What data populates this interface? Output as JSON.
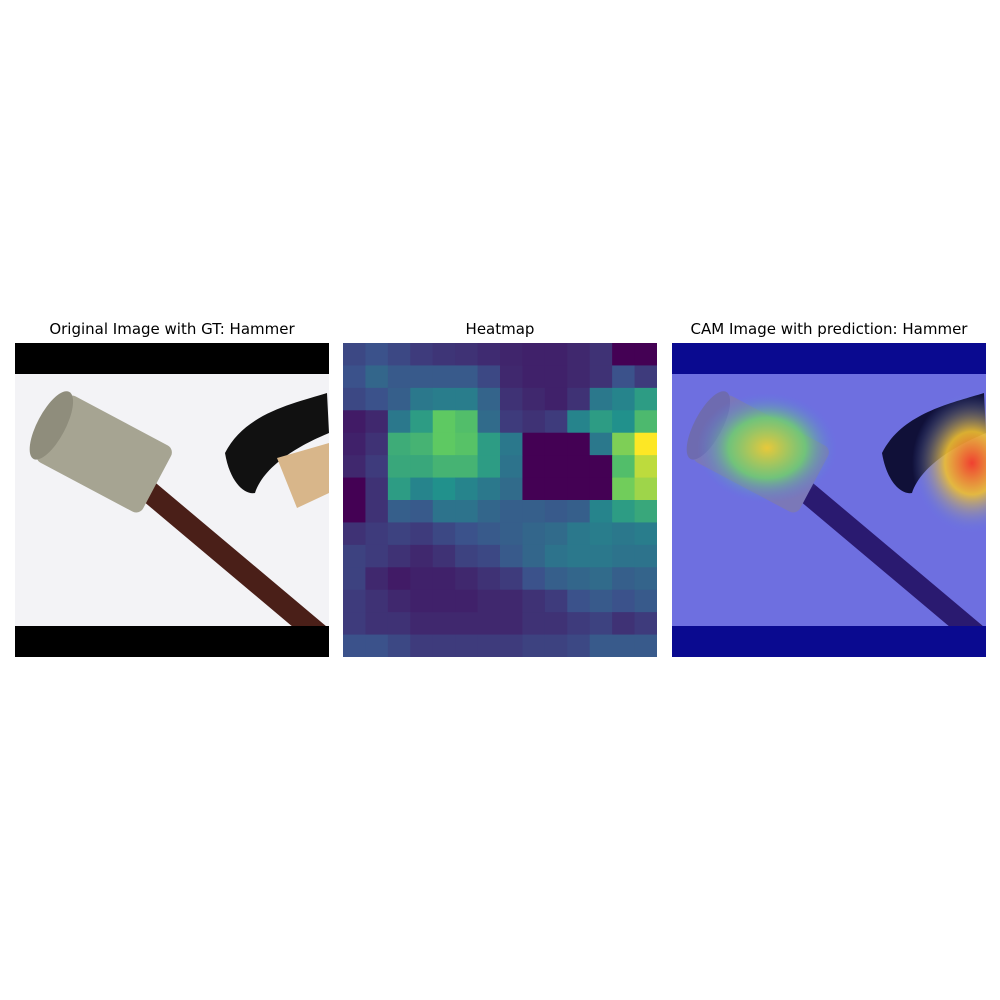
{
  "panels": {
    "original_title": "Original Image with GT: Hammer",
    "heatmap_title": "Heatmap",
    "cam_title": "CAM Image with prediction: Hammer"
  },
  "chart_data": {
    "type": "heatmap",
    "title": "Heatmap",
    "colormap": "viridis",
    "rows": 14,
    "cols": 14,
    "values": [
      [
        0.22,
        0.25,
        0.22,
        0.18,
        0.16,
        0.15,
        0.13,
        0.11,
        0.1,
        0.1,
        0.12,
        0.15,
        0.0,
        0.0
      ],
      [
        0.25,
        0.33,
        0.28,
        0.28,
        0.28,
        0.28,
        0.22,
        0.12,
        0.1,
        0.1,
        0.12,
        0.15,
        0.25,
        0.18
      ],
      [
        0.22,
        0.25,
        0.3,
        0.4,
        0.42,
        0.42,
        0.32,
        0.15,
        0.12,
        0.1,
        0.15,
        0.4,
        0.45,
        0.55
      ],
      [
        0.08,
        0.12,
        0.4,
        0.55,
        0.75,
        0.7,
        0.35,
        0.18,
        0.15,
        0.18,
        0.45,
        0.55,
        0.5,
        0.68
      ],
      [
        0.1,
        0.15,
        0.62,
        0.65,
        0.75,
        0.72,
        0.55,
        0.4,
        0.0,
        0.0,
        0.0,
        0.4,
        0.8,
        1.0
      ],
      [
        0.12,
        0.18,
        0.6,
        0.6,
        0.65,
        0.65,
        0.55,
        0.38,
        0.0,
        0.0,
        0.0,
        0.0,
        0.7,
        0.9
      ],
      [
        0.0,
        0.15,
        0.55,
        0.45,
        0.5,
        0.45,
        0.4,
        0.35,
        0.0,
        0.0,
        0.0,
        0.0,
        0.78,
        0.85
      ],
      [
        0.0,
        0.15,
        0.3,
        0.28,
        0.38,
        0.38,
        0.33,
        0.3,
        0.3,
        0.28,
        0.3,
        0.45,
        0.55,
        0.6
      ],
      [
        0.15,
        0.18,
        0.2,
        0.18,
        0.22,
        0.25,
        0.28,
        0.3,
        0.33,
        0.35,
        0.4,
        0.42,
        0.4,
        0.42
      ],
      [
        0.2,
        0.18,
        0.15,
        0.12,
        0.15,
        0.2,
        0.22,
        0.28,
        0.33,
        0.38,
        0.4,
        0.4,
        0.38,
        0.38
      ],
      [
        0.2,
        0.12,
        0.08,
        0.1,
        0.1,
        0.12,
        0.15,
        0.18,
        0.25,
        0.3,
        0.33,
        0.35,
        0.3,
        0.32
      ],
      [
        0.18,
        0.15,
        0.12,
        0.1,
        0.1,
        0.1,
        0.12,
        0.12,
        0.15,
        0.18,
        0.25,
        0.28,
        0.25,
        0.28
      ],
      [
        0.18,
        0.15,
        0.15,
        0.12,
        0.12,
        0.12,
        0.12,
        0.12,
        0.15,
        0.15,
        0.18,
        0.2,
        0.15,
        0.18
      ],
      [
        0.25,
        0.25,
        0.22,
        0.18,
        0.18,
        0.18,
        0.18,
        0.18,
        0.2,
        0.2,
        0.22,
        0.28,
        0.28,
        0.28
      ]
    ]
  }
}
